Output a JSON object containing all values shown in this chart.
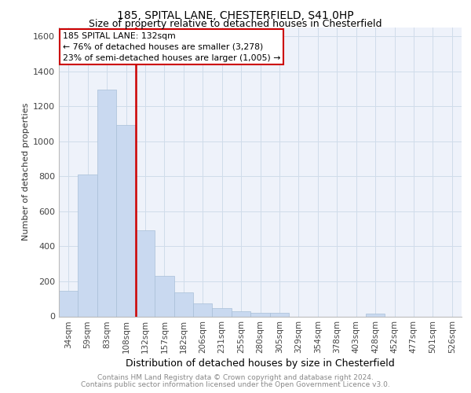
{
  "title1": "185, SPITAL LANE, CHESTERFIELD, S41 0HP",
  "title2": "Size of property relative to detached houses in Chesterfield",
  "xlabel": "Distribution of detached houses by size in Chesterfield",
  "ylabel": "Number of detached properties",
  "categories": [
    "34sqm",
    "59sqm",
    "83sqm",
    "108sqm",
    "132sqm",
    "157sqm",
    "182sqm",
    "206sqm",
    "231sqm",
    "255sqm",
    "280sqm",
    "305sqm",
    "329sqm",
    "354sqm",
    "378sqm",
    "403sqm",
    "428sqm",
    "452sqm",
    "477sqm",
    "501sqm",
    "526sqm"
  ],
  "values": [
    145,
    810,
    1295,
    1095,
    490,
    232,
    138,
    75,
    48,
    28,
    22,
    18,
    0,
    0,
    0,
    0,
    15,
    0,
    0,
    0,
    0
  ],
  "bar_color": "#c9d9f0",
  "bar_edge_color": "#a8bfd8",
  "annotation_line1": "185 SPITAL LANE: 132sqm",
  "annotation_line2": "← 76% of detached houses are smaller (3,278)",
  "annotation_line3": "23% of semi-detached houses are larger (1,005) →",
  "annotation_box_color": "#ffffff",
  "annotation_box_edge_color": "#cc0000",
  "red_line_index": 3.5,
  "ylim": [
    0,
    1650
  ],
  "yticks": [
    0,
    200,
    400,
    600,
    800,
    1000,
    1200,
    1400,
    1600
  ],
  "grid_color": "#d0dcea",
  "footer1": "Contains HM Land Registry data © Crown copyright and database right 2024.",
  "footer2": "Contains public sector information licensed under the Open Government Licence v3.0.",
  "bg_color": "#eef2fa",
  "title1_fontsize": 10,
  "title2_fontsize": 9,
  "ylabel_fontsize": 8,
  "xlabel_fontsize": 9,
  "footer_fontsize": 6.5,
  "tick_fontsize": 7.5,
  "ann_fontsize": 7.8
}
